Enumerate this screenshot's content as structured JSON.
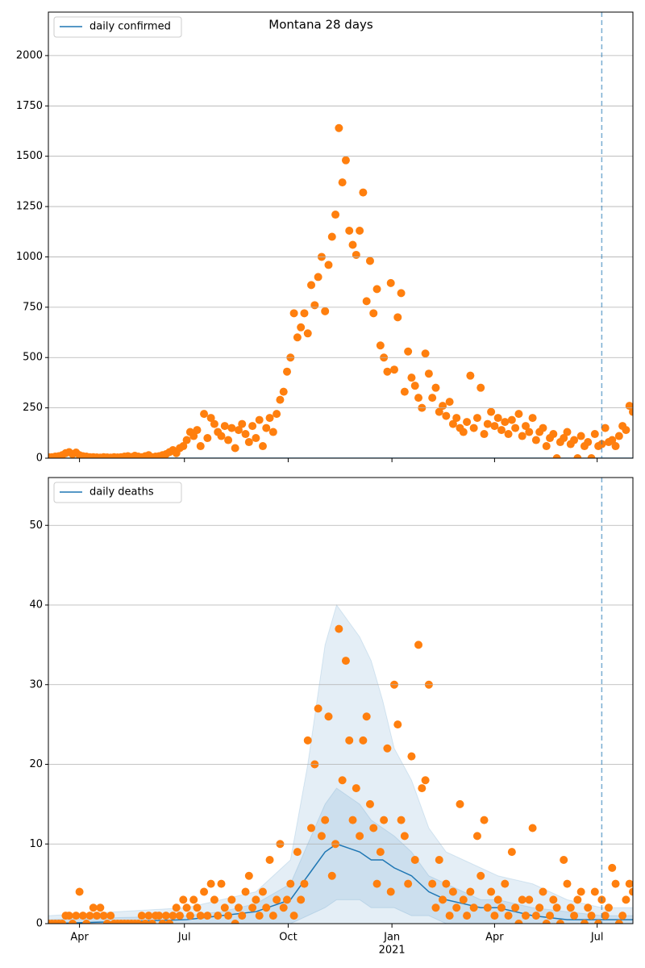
{
  "chart_data": [
    {
      "type": "scatter",
      "title": "Montana 28 days",
      "sharex": true,
      "grid": true,
      "legend": "upper left",
      "xlim": [
        0,
        507
      ],
      "ylim": [
        0,
        2216
      ],
      "yticks": [
        0,
        250,
        500,
        750,
        1000,
        1250,
        1500,
        1750,
        2000
      ],
      "vline": 480,
      "points": {
        "color": "#ff7f0e",
        "x": [
          0,
          3,
          6,
          9,
          12,
          15,
          18,
          21,
          24,
          27,
          30,
          33,
          36,
          39,
          42,
          45,
          48,
          51,
          54,
          57,
          60,
          63,
          66,
          69,
          72,
          75,
          78,
          81,
          84,
          87,
          90,
          93,
          96,
          99,
          102,
          105,
          108,
          111,
          114,
          117,
          120,
          123,
          126,
          129,
          132,
          135,
          138,
          141,
          144,
          147,
          150,
          153,
          156,
          159,
          162,
          165,
          168,
          171,
          174,
          177,
          180,
          183,
          186,
          189,
          192,
          195,
          198,
          201,
          204,
          207,
          210,
          213,
          216,
          219,
          222,
          225,
          228,
          231,
          234,
          237,
          240,
          243,
          246,
          249,
          252,
          255,
          258,
          261,
          264,
          267,
          270,
          273,
          276,
          279,
          282,
          285,
          288,
          291,
          294,
          297,
          300,
          303,
          306,
          309,
          312,
          315,
          318,
          321,
          324,
          327,
          330,
          333,
          336,
          339,
          342,
          345,
          348,
          351,
          354,
          357,
          360,
          363,
          366,
          369,
          372,
          375,
          378,
          381,
          384,
          387,
          390,
          393,
          396,
          399,
          402,
          405,
          408,
          411,
          414,
          417,
          420,
          423,
          426,
          429,
          432,
          435,
          438,
          441,
          444,
          447,
          450,
          453,
          456,
          459,
          462,
          465,
          468,
          471,
          474,
          477,
          480,
          483,
          486,
          489,
          492,
          495,
          498,
          501,
          504,
          507
        ],
        "values": [
          5,
          5,
          8,
          10,
          15,
          25,
          30,
          20,
          28,
          15,
          10,
          8,
          5,
          5,
          4,
          3,
          5,
          4,
          3,
          5,
          4,
          5,
          8,
          10,
          6,
          12,
          8,
          5,
          10,
          15,
          5,
          8,
          10,
          15,
          20,
          30,
          40,
          25,
          50,
          60,
          90,
          130,
          110,
          140,
          60,
          220,
          100,
          200,
          170,
          130,
          110,
          160,
          90,
          150,
          50,
          140,
          170,
          120,
          80,
          160,
          100,
          190,
          60,
          150,
          200,
          130,
          220,
          290,
          330,
          430,
          500,
          720,
          600,
          650,
          720,
          620,
          860,
          760,
          900,
          1000,
          730,
          960,
          1100,
          1210,
          1640,
          1370,
          1480,
          1130,
          1060,
          1010,
          1130,
          1320,
          780,
          980,
          720,
          840,
          560,
          500,
          430,
          870,
          440,
          700,
          820,
          330,
          530,
          400,
          360,
          300,
          250,
          520,
          420,
          300,
          350,
          230,
          260,
          210,
          280,
          170,
          200,
          150,
          130,
          180,
          410,
          150,
          200,
          350,
          120,
          170,
          230,
          160,
          200,
          140,
          180,
          120,
          190,
          150,
          220,
          110,
          160,
          130,
          200,
          90,
          130,
          150,
          60,
          100,
          120,
          0,
          80,
          100,
          130,
          70,
          90,
          0,
          110,
          60,
          80,
          0,
          120,
          60,
          70,
          150,
          80,
          90,
          60,
          110,
          160,
          140,
          260,
          230
        ]
      },
      "series": [
        {
          "name": "daily confirmed",
          "color": "#1f77b4",
          "x": [
            0,
            507
          ],
          "values": [
            0,
            0
          ]
        }
      ]
    },
    {
      "type": "scatter",
      "grid": true,
      "legend": "upper left",
      "xlim": [
        0,
        507
      ],
      "ylim": [
        0,
        56
      ],
      "yticks": [
        0,
        10,
        20,
        30,
        40,
        50
      ],
      "xticks": [
        {
          "value": 27,
          "label": "Apr"
        },
        {
          "value": 118,
          "label": "Jul"
        },
        {
          "value": 208,
          "label": "Oct"
        },
        {
          "value": 298,
          "label": "Jan"
        },
        {
          "value": 387,
          "label": "Apr"
        },
        {
          "value": 476,
          "label": "Jul"
        }
      ],
      "x_year_label": {
        "value": 298,
        "label": "2021"
      },
      "vline": 480,
      "points": {
        "color": "#ff7f0e",
        "x": [
          0,
          3,
          6,
          9,
          12,
          15,
          18,
          21,
          24,
          27,
          30,
          33,
          36,
          39,
          42,
          45,
          48,
          51,
          54,
          57,
          60,
          63,
          66,
          69,
          72,
          75,
          78,
          81,
          84,
          87,
          90,
          93,
          96,
          99,
          102,
          105,
          108,
          111,
          114,
          117,
          120,
          123,
          126,
          129,
          132,
          135,
          138,
          141,
          144,
          147,
          150,
          153,
          156,
          159,
          162,
          165,
          168,
          171,
          174,
          177,
          180,
          183,
          186,
          189,
          192,
          195,
          198,
          201,
          204,
          207,
          210,
          213,
          216,
          219,
          222,
          225,
          228,
          231,
          234,
          237,
          240,
          243,
          246,
          249,
          252,
          255,
          258,
          261,
          264,
          267,
          270,
          273,
          276,
          279,
          282,
          285,
          288,
          291,
          294,
          297,
          300,
          303,
          306,
          309,
          312,
          315,
          318,
          321,
          324,
          327,
          330,
          333,
          336,
          339,
          342,
          345,
          348,
          351,
          354,
          357,
          360,
          363,
          366,
          369,
          372,
          375,
          378,
          381,
          384,
          387,
          390,
          393,
          396,
          399,
          402,
          405,
          408,
          411,
          414,
          417,
          420,
          423,
          426,
          429,
          432,
          435,
          438,
          441,
          444,
          447,
          450,
          453,
          456,
          459,
          462,
          465,
          468,
          471,
          474,
          477,
          480,
          483,
          486,
          489,
          492,
          495,
          498,
          501,
          504,
          507
        ],
        "values": [
          0,
          0,
          0,
          0,
          0,
          1,
          1,
          0,
          1,
          4,
          1,
          0,
          1,
          2,
          1,
          2,
          1,
          0,
          1,
          0,
          0,
          0,
          0,
          0,
          0,
          0,
          0,
          1,
          0,
          1,
          0,
          1,
          1,
          0,
          1,
          0,
          1,
          2,
          1,
          3,
          2,
          1,
          3,
          2,
          1,
          4,
          1,
          5,
          3,
          1,
          5,
          2,
          1,
          3,
          0,
          2,
          1,
          4,
          6,
          2,
          3,
          1,
          4,
          2,
          8,
          1,
          3,
          10,
          2,
          3,
          5,
          1,
          9,
          3,
          5,
          23,
          12,
          20,
          27,
          11,
          13,
          26,
          6,
          10,
          37,
          18,
          33,
          23,
          13,
          17,
          11,
          23,
          26,
          15,
          12,
          5,
          9,
          13,
          22,
          4,
          30,
          25,
          13,
          11,
          5,
          21,
          8,
          35,
          17,
          18,
          30,
          5,
          2,
          8,
          3,
          5,
          1,
          4,
          2,
          15,
          3,
          1,
          4,
          2,
          11,
          6,
          13,
          2,
          4,
          1,
          3,
          2,
          5,
          1,
          9,
          2,
          0,
          3,
          1,
          3,
          12,
          1,
          2,
          4,
          0,
          1,
          3,
          2,
          0,
          8,
          5,
          2,
          1,
          3,
          4,
          0,
          2,
          1,
          4,
          0,
          3,
          1,
          2,
          7,
          5,
          0,
          1,
          3,
          5,
          4
        ]
      },
      "bands": [
        {
          "color": "#1f77b4",
          "x": [
            0,
            120,
            150,
            180,
            210,
            225,
            240,
            250,
            260,
            270,
            280,
            290,
            300,
            315,
            330,
            345,
            360,
            375,
            390,
            420,
            450,
            480,
            507
          ],
          "upper": [
            1,
            2,
            3,
            4,
            8,
            20,
            35,
            40,
            38,
            36,
            33,
            28,
            22,
            18,
            12,
            9,
            8,
            7,
            6,
            5,
            3,
            2,
            2
          ],
          "lower": [
            0,
            0,
            0,
            0,
            0,
            0,
            0,
            0,
            0,
            0,
            0,
            0,
            0,
            0,
            0,
            0,
            0,
            0,
            0,
            0,
            0,
            0,
            0
          ]
        },
        {
          "color": "#1f77b4",
          "x": [
            0,
            120,
            150,
            180,
            210,
            225,
            240,
            250,
            260,
            270,
            280,
            290,
            300,
            315,
            330,
            345,
            360,
            375,
            390,
            420,
            450,
            480,
            507
          ],
          "upper": [
            0.5,
            1,
            1.5,
            2.5,
            5,
            10,
            15,
            17,
            16,
            15,
            13,
            12,
            11,
            9,
            6,
            5,
            4,
            3,
            3,
            2,
            1.5,
            1,
            1
          ],
          "lower": [
            0,
            0,
            0,
            0,
            0,
            1,
            2,
            3,
            3,
            3,
            2,
            2,
            2,
            1,
            1,
            0,
            0,
            0,
            0,
            0,
            0,
            0,
            0
          ]
        }
      ],
      "series": [
        {
          "name": "daily deaths",
          "color": "#1f77b4",
          "x": [
            0,
            120,
            150,
            180,
            210,
            225,
            240,
            250,
            260,
            270,
            280,
            290,
            300,
            315,
            330,
            345,
            360,
            375,
            390,
            420,
            450,
            480,
            507
          ],
          "values": [
            0,
            0.5,
            1,
            1.5,
            3,
            6,
            9,
            10,
            9.5,
            9,
            8,
            8,
            7,
            6,
            4,
            3,
            2.5,
            2,
            2,
            1,
            0.5,
            0.5,
            0.5
          ]
        }
      ]
    }
  ]
}
